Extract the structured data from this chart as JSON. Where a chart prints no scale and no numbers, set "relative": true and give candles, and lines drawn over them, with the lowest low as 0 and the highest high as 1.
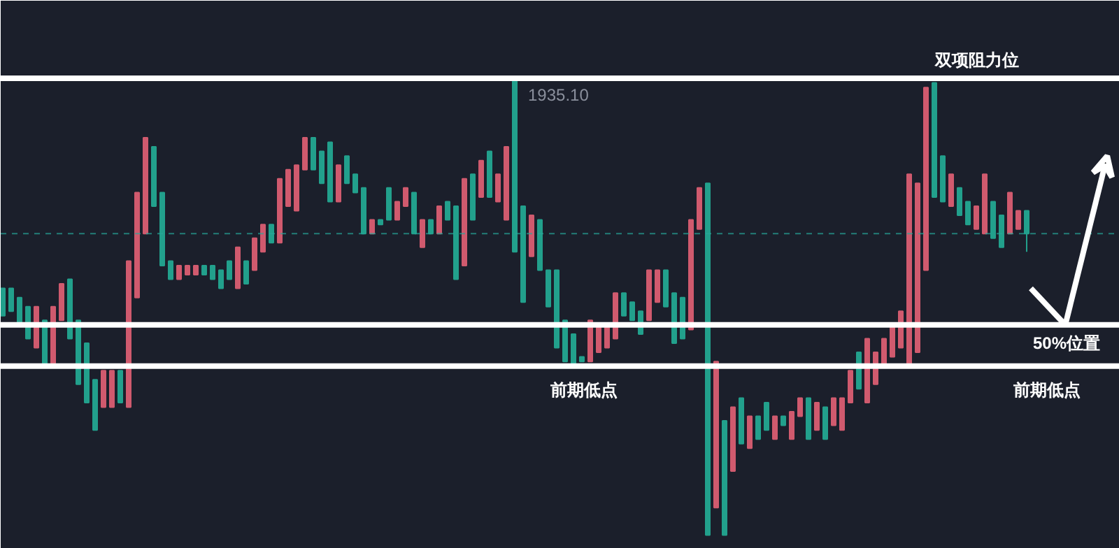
{
  "chart_data": {
    "type": "candlestick",
    "relative": true,
    "categories": [
      null,
      null,
      null,
      null,
      null,
      null,
      null,
      null,
      null,
      null,
      null,
      null,
      null,
      null,
      null,
      null,
      null,
      null,
      null,
      null,
      null,
      null,
      null,
      null,
      null,
      null,
      null,
      null,
      null,
      null,
      null,
      null,
      null,
      null,
      null,
      null,
      null,
      null,
      null,
      null,
      null,
      null,
      null,
      null,
      null,
      null,
      null,
      null,
      null,
      null,
      null,
      null,
      null,
      null,
      null,
      null,
      null,
      null,
      null,
      null,
      null,
      null,
      null,
      null,
      null,
      null,
      null,
      null,
      null,
      null,
      null,
      null,
      null,
      null,
      null,
      null,
      null,
      null,
      null,
      null,
      null,
      null,
      null,
      null,
      null,
      null,
      null,
      null,
      null,
      null,
      null,
      null,
      null,
      null,
      null,
      null,
      null,
      null,
      null,
      null,
      null,
      null,
      null,
      null,
      null,
      null,
      null,
      null,
      null,
      null,
      null,
      null,
      null,
      null,
      null,
      null,
      null,
      null,
      null,
      null,
      null,
      null,
      null
    ],
    "ohlc": [
      [
        0.54,
        0.54,
        0.48,
        0.48
      ],
      [
        0.54,
        0.54,
        0.49,
        0.49
      ],
      [
        0.52,
        0.52,
        0.46,
        0.46
      ],
      [
        0.5,
        0.5,
        0.43,
        0.43
      ],
      [
        0.41,
        0.5,
        0.41,
        0.5
      ],
      [
        0.47,
        0.47,
        0.37,
        0.37
      ],
      [
        0.37,
        0.5,
        0.37,
        0.5
      ],
      [
        0.47,
        0.55,
        0.47,
        0.55
      ],
      [
        0.56,
        0.56,
        0.43,
        0.43
      ],
      [
        0.47,
        0.47,
        0.33,
        0.33
      ],
      [
        0.42,
        0.42,
        0.29,
        0.29
      ],
      [
        0.34,
        0.34,
        0.23,
        0.23
      ],
      [
        0.28,
        0.36,
        0.28,
        0.36
      ],
      [
        0.28,
        0.36,
        0.28,
        0.36
      ],
      [
        0.36,
        0.36,
        0.29,
        0.29
      ],
      [
        0.28,
        0.6,
        0.28,
        0.6
      ],
      [
        0.52,
        0.75,
        0.52,
        0.75
      ],
      [
        0.66,
        0.87,
        0.66,
        0.87
      ],
      [
        0.85,
        0.85,
        0.72,
        0.72
      ],
      [
        0.75,
        0.75,
        0.59,
        0.59
      ],
      [
        0.6,
        0.6,
        0.56,
        0.56
      ],
      [
        0.56,
        0.59,
        0.56,
        0.59
      ],
      [
        0.57,
        0.59,
        0.57,
        0.59
      ],
      [
        0.57,
        0.59,
        0.57,
        0.59
      ],
      [
        0.59,
        0.59,
        0.57,
        0.57
      ],
      [
        0.59,
        0.59,
        0.56,
        0.56
      ],
      [
        0.58,
        0.58,
        0.54,
        0.54
      ],
      [
        0.6,
        0.6,
        0.56,
        0.56
      ],
      [
        0.54,
        0.63,
        0.54,
        0.63
      ],
      [
        0.6,
        0.6,
        0.55,
        0.55
      ],
      [
        0.58,
        0.65,
        0.58,
        0.65
      ],
      [
        0.62,
        0.68,
        0.62,
        0.68
      ],
      [
        0.68,
        0.68,
        0.64,
        0.64
      ],
      [
        0.64,
        0.78,
        0.64,
        0.78
      ],
      [
        0.72,
        0.8,
        0.72,
        0.8
      ],
      [
        0.71,
        0.81,
        0.71,
        0.81
      ],
      [
        0.8,
        0.87,
        0.8,
        0.87
      ],
      [
        0.87,
        0.87,
        0.8,
        0.8
      ],
      [
        0.84,
        0.84,
        0.77,
        0.77
      ],
      [
        0.86,
        0.86,
        0.73,
        0.73
      ],
      [
        0.73,
        0.81,
        0.73,
        0.81
      ],
      [
        0.83,
        0.83,
        0.77,
        0.77
      ],
      [
        0.79,
        0.79,
        0.75,
        0.75
      ],
      [
        0.76,
        0.76,
        0.66,
        0.66
      ],
      [
        0.66,
        0.69,
        0.66,
        0.69
      ],
      [
        0.69,
        0.69,
        0.68,
        0.68
      ],
      [
        0.76,
        0.76,
        0.69,
        0.69
      ],
      [
        0.69,
        0.73,
        0.69,
        0.73
      ],
      [
        0.72,
        0.76,
        0.72,
        0.76
      ],
      [
        0.75,
        0.75,
        0.66,
        0.66
      ],
      [
        0.63,
        0.69,
        0.63,
        0.69
      ],
      [
        0.69,
        0.69,
        0.66,
        0.66
      ],
      [
        0.66,
        0.72,
        0.66,
        0.72
      ],
      [
        0.73,
        0.73,
        0.69,
        0.69
      ],
      [
        0.72,
        0.72,
        0.56,
        0.56
      ],
      [
        0.59,
        0.78,
        0.59,
        0.78
      ],
      [
        0.79,
        0.79,
        0.69,
        0.69
      ],
      [
        0.74,
        0.82,
        0.74,
        0.82
      ],
      [
        0.84,
        0.84,
        0.74,
        0.74
      ],
      [
        0.73,
        0.79,
        0.73,
        0.79
      ],
      [
        0.69,
        0.85,
        0.69,
        0.85
      ],
      [
        1.0,
        1.0,
        0.62,
        0.62
      ],
      [
        0.72,
        0.72,
        0.51,
        0.51
      ],
      [
        0.61,
        0.7,
        0.61,
        0.7
      ],
      [
        0.69,
        0.69,
        0.58,
        0.58
      ],
      [
        0.58,
        0.58,
        0.5,
        0.5
      ],
      [
        0.58,
        0.58,
        0.41,
        0.41
      ],
      [
        0.47,
        0.47,
        0.38,
        0.38
      ],
      [
        0.44,
        0.44,
        0.37,
        0.37
      ],
      [
        0.39,
        0.39,
        0.38,
        0.38
      ],
      [
        0.38,
        0.47,
        0.38,
        0.47
      ],
      [
        0.4,
        0.46,
        0.4,
        0.46
      ],
      [
        0.41,
        0.46,
        0.41,
        0.46
      ],
      [
        0.43,
        0.53,
        0.43,
        0.53
      ],
      [
        0.53,
        0.53,
        0.48,
        0.48
      ],
      [
        0.51,
        0.51,
        0.47,
        0.47
      ],
      [
        0.49,
        0.49,
        0.44,
        0.44
      ],
      [
        0.47,
        0.58,
        0.47,
        0.58
      ],
      [
        0.51,
        0.58,
        0.51,
        0.58
      ],
      [
        0.58,
        0.58,
        0.5,
        0.5
      ],
      [
        0.53,
        0.53,
        0.42,
        0.42
      ],
      [
        0.52,
        0.52,
        0.43,
        0.43
      ],
      [
        0.45,
        0.69,
        0.45,
        0.69
      ],
      [
        0.67,
        0.76,
        0.67,
        0.76
      ],
      [
        0.77,
        0.77,
        0.0,
        0.0
      ],
      [
        0.06,
        0.38,
        0.06,
        0.38
      ],
      [
        0.25,
        0.25,
        0.0,
        0.0
      ],
      [
        0.14,
        0.28,
        0.14,
        0.28
      ],
      [
        0.3,
        0.3,
        0.2,
        0.2
      ],
      [
        0.19,
        0.26,
        0.19,
        0.26
      ],
      [
        0.26,
        0.26,
        0.21,
        0.21
      ],
      [
        0.29,
        0.29,
        0.23,
        0.23
      ],
      [
        0.21,
        0.26,
        0.21,
        0.26
      ],
      [
        0.26,
        0.26,
        0.24,
        0.24
      ],
      [
        0.21,
        0.27,
        0.21,
        0.27
      ],
      [
        0.26,
        0.3,
        0.26,
        0.3
      ],
      [
        0.3,
        0.3,
        0.21,
        0.21
      ],
      [
        0.23,
        0.29,
        0.23,
        0.29
      ],
      [
        0.28,
        0.28,
        0.21,
        0.21
      ],
      [
        0.24,
        0.3,
        0.24,
        0.3
      ],
      [
        0.23,
        0.3,
        0.23,
        0.3
      ],
      [
        0.29,
        0.36,
        0.29,
        0.36
      ],
      [
        0.4,
        0.4,
        0.32,
        0.32
      ],
      [
        0.29,
        0.43,
        0.29,
        0.43
      ],
      [
        0.33,
        0.4,
        0.33,
        0.4
      ],
      [
        0.37,
        0.43,
        0.37,
        0.43
      ],
      [
        0.39,
        0.46,
        0.39,
        0.46
      ],
      [
        0.41,
        0.49,
        0.41,
        0.49
      ],
      [
        0.37,
        0.79,
        0.37,
        0.79
      ],
      [
        0.4,
        0.77,
        0.4,
        0.77
      ],
      [
        0.58,
        0.98,
        0.58,
        0.98
      ],
      [
        0.99,
        0.99,
        0.74,
        0.74
      ],
      [
        0.83,
        0.83,
        0.73,
        0.73
      ],
      [
        0.72,
        0.79,
        0.72,
        0.79
      ],
      [
        0.76,
        0.76,
        0.7,
        0.7
      ],
      [
        0.73,
        0.73,
        0.68,
        0.68
      ],
      [
        0.67,
        0.72,
        0.67,
        0.72
      ],
      [
        0.66,
        0.79,
        0.66,
        0.79
      ],
      [
        0.73,
        0.73,
        0.65,
        0.65
      ],
      [
        0.7,
        0.7,
        0.63,
        0.63
      ],
      [
        0.66,
        0.75,
        0.66,
        0.75
      ],
      [
        0.67,
        0.71,
        0.67,
        0.71
      ],
      [
        0.71,
        0.71,
        0.62,
        0.66
      ]
    ],
    "colors": [
      "#22a08c",
      "#22a08c",
      "#22a08c",
      "#22a08c",
      "#d05a6e",
      "#22a08c",
      "#d05a6e",
      "#d05a6e",
      "#22a08c",
      "#22a08c",
      "#22a08c",
      "#22a08c",
      "#d05a6e",
      "#d05a6e",
      "#22a08c",
      "#d05a6e",
      "#d05a6e",
      "#d05a6e",
      "#22a08c",
      "#22a08c",
      "#22a08c",
      "#d05a6e",
      "#d05a6e",
      "#d05a6e",
      "#22a08c",
      "#22a08c",
      "#22a08c",
      "#22a08c",
      "#d05a6e",
      "#22a08c",
      "#d05a6e",
      "#d05a6e",
      "#22a08c",
      "#d05a6e",
      "#d05a6e",
      "#d05a6e",
      "#d05a6e",
      "#22a08c",
      "#22a08c",
      "#22a08c",
      "#d05a6e",
      "#22a08c",
      "#22a08c",
      "#22a08c",
      "#d05a6e",
      "#22a08c",
      "#22a08c",
      "#d05a6e",
      "#d05a6e",
      "#22a08c",
      "#d05a6e",
      "#22a08c",
      "#d05a6e",
      "#22a08c",
      "#22a08c",
      "#d05a6e",
      "#22a08c",
      "#d05a6e",
      "#22a08c",
      "#d05a6e",
      "#d05a6e",
      "#22a08c",
      "#22a08c",
      "#d05a6e",
      "#22a08c",
      "#22a08c",
      "#22a08c",
      "#22a08c",
      "#22a08c",
      "#22a08c",
      "#d05a6e",
      "#d05a6e",
      "#d05a6e",
      "#d05a6e",
      "#22a08c",
      "#22a08c",
      "#22a08c",
      "#d05a6e",
      "#d05a6e",
      "#22a08c",
      "#22a08c",
      "#22a08c",
      "#d05a6e",
      "#d05a6e",
      "#22a08c",
      "#d05a6e",
      "#22a08c",
      "#d05a6e",
      "#22a08c",
      "#d05a6e",
      "#22a08c",
      "#22a08c",
      "#d05a6e",
      "#22a08c",
      "#d05a6e",
      "#d05a6e",
      "#22a08c",
      "#d05a6e",
      "#22a08c",
      "#d05a6e",
      "#d05a6e",
      "#d05a6e",
      "#22a08c",
      "#d05a6e",
      "#d05a6e",
      "#d05a6e",
      "#d05a6e",
      "#d05a6e",
      "#d05a6e",
      "#d05a6e",
      "#d05a6e",
      "#22a08c",
      "#22a08c",
      "#d05a6e",
      "#22a08c",
      "#22a08c",
      "#d05a6e",
      "#d05a6e",
      "#22a08c",
      "#22a08c",
      "#d05a6e",
      "#d05a6e",
      "#22a08c"
    ],
    "ref_lines": [
      {
        "axis": "y",
        "value": 1.0,
        "label": "双项阻力位",
        "color": "#ffffff"
      },
      {
        "axis": "y",
        "value": 0.46,
        "label": "50%位置",
        "color": "#ffffff"
      },
      {
        "axis": "y",
        "value": 0.37,
        "label": "前期低点",
        "color": "#ffffff"
      },
      {
        "axis": "y",
        "value": 0.66,
        "color": "#26a69a",
        "line_style": "dashed"
      }
    ],
    "annotations": [
      {
        "text": "1935.10",
        "y": 1.0
      },
      {
        "text": "前期低点",
        "y": 0.37
      }
    ]
  }
}
